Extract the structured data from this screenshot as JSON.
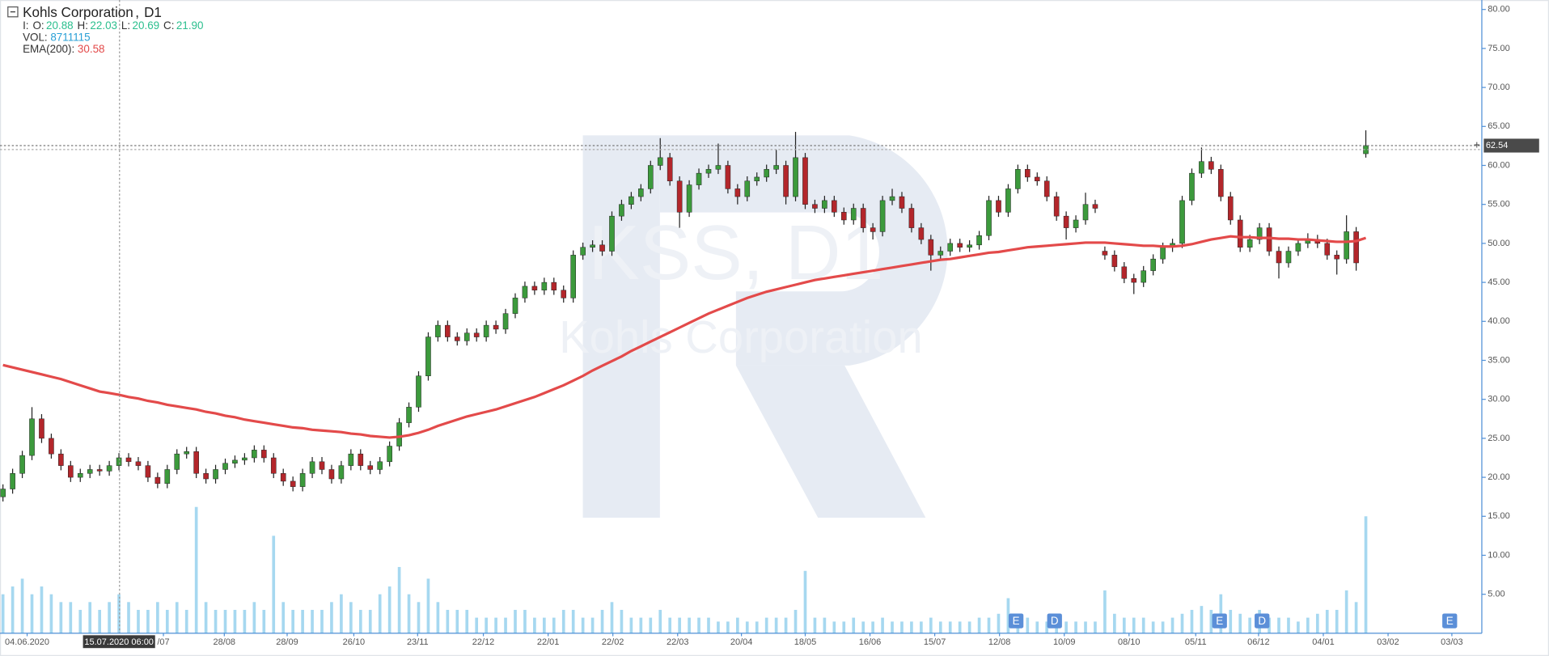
{
  "chart_data": {
    "type": "candlestick",
    "title": "Kohls Corporation",
    "timeframe": "D1",
    "watermark": {
      "symbol": "KSS, D1",
      "name": "Kohls Corporation"
    },
    "legend": {
      "prefix": "I:",
      "items": [
        {
          "label": "O:",
          "value": "20.88"
        },
        {
          "label": "H:",
          "value": "22.03"
        },
        {
          "label": "L:",
          "value": "20.69"
        },
        {
          "label": "C:",
          "value": "21.90"
        }
      ],
      "vol_label": "VOL:",
      "vol_value": 8711115,
      "ema_label": "EMA(200):",
      "ema_value": 30.58
    },
    "up_color": "#3c9a3c",
    "down_color": "#b3262b",
    "volume_color": "#a6d8f0",
    "ema_color": "#e34a4a",
    "ylim": [
      0,
      81
    ],
    "yticks": [
      {
        "value": 5,
        "label": "5.00"
      },
      {
        "value": 10,
        "label": "10.00"
      },
      {
        "value": 15,
        "label": "15.00"
      },
      {
        "value": 20,
        "label": "20.00"
      },
      {
        "value": 25,
        "label": "25.00"
      },
      {
        "value": 30,
        "label": "30.00"
      },
      {
        "value": 35,
        "label": "35.00"
      },
      {
        "value": 40,
        "label": "40.00"
      },
      {
        "value": 45,
        "label": "45.00"
      },
      {
        "value": 50,
        "label": "50.00"
      },
      {
        "value": 55,
        "label": "55.00"
      },
      {
        "value": 60,
        "label": "60.00"
      },
      {
        "value": 65,
        "label": "65.00"
      },
      {
        "value": 70,
        "label": "70.00"
      },
      {
        "value": 75,
        "label": "75.00"
      },
      {
        "value": 80,
        "label": "80.00"
      }
    ],
    "xlim": [
      0,
      153
    ],
    "xticks": [
      {
        "value": 2.5,
        "label": "04.06.2020"
      },
      {
        "value": 16.6,
        "label": "/07"
      },
      {
        "value": 22.9,
        "label": "28/08"
      },
      {
        "value": 29.4,
        "label": "28/09"
      },
      {
        "value": 36.3,
        "label": "26/10"
      },
      {
        "value": 42.9,
        "label": "23/11"
      },
      {
        "value": 49.7,
        "label": "22/12"
      },
      {
        "value": 56.4,
        "label": "22/01"
      },
      {
        "value": 63.1,
        "label": "22/02"
      },
      {
        "value": 69.8,
        "label": "22/03"
      },
      {
        "value": 76.4,
        "label": "20/04"
      },
      {
        "value": 83.0,
        "label": "18/05"
      },
      {
        "value": 89.7,
        "label": "16/06"
      },
      {
        "value": 96.4,
        "label": "15/07"
      },
      {
        "value": 103.1,
        "label": "12/08"
      },
      {
        "value": 109.8,
        "label": "10/09"
      },
      {
        "value": 116.5,
        "label": "08/10"
      },
      {
        "value": 123.4,
        "label": "05/11"
      },
      {
        "value": 129.9,
        "label": "06/12"
      },
      {
        "value": 136.6,
        "label": "04/01"
      },
      {
        "value": 143.3,
        "label": "03/02"
      },
      {
        "value": 149.9,
        "label": "03/03"
      }
    ],
    "last_price": 62.54,
    "crosshair_label": "15.07.2020 06:00",
    "events": [
      "E",
      "D",
      "E",
      "D",
      "E"
    ],
    "candles": [
      [
        17.5,
        19.1,
        16.9,
        18.5
      ],
      [
        18.5,
        21.1,
        17.9,
        20.5
      ],
      [
        20.5,
        23.4,
        19.9,
        22.8
      ],
      [
        22.8,
        29,
        22.2,
        27.5
      ],
      [
        27.5,
        28.1,
        24.4,
        25
      ],
      [
        25,
        25.6,
        22.4,
        23
      ],
      [
        23,
        23.6,
        20.9,
        21.5
      ],
      [
        21.5,
        22.1,
        19.4,
        20
      ],
      [
        20,
        21.1,
        19.4,
        20.5
      ],
      [
        20.5,
        21.6,
        19.9,
        21
      ],
      [
        21,
        21.6,
        20.2,
        20.8
      ],
      [
        20.8,
        22.1,
        20.2,
        21.5
      ],
      [
        21.5,
        23.1,
        20.9,
        22.5
      ],
      [
        22.5,
        23.1,
        21.4,
        22
      ],
      [
        22,
        22.6,
        20.9,
        21.5
      ],
      [
        21.5,
        22.1,
        19.4,
        20
      ],
      [
        20,
        20.6,
        18.6,
        19.2
      ],
      [
        19.2,
        21.6,
        18.6,
        21
      ],
      [
        21,
        23.6,
        20.4,
        23
      ],
      [
        23,
        23.9,
        22.4,
        23.3
      ],
      [
        23.3,
        23.9,
        19.9,
        20.5
      ],
      [
        20.5,
        21.1,
        19.2,
        19.8
      ],
      [
        19.8,
        21.6,
        19.2,
        21
      ],
      [
        21,
        22.4,
        20.4,
        21.8
      ],
      [
        21.8,
        22.8,
        21.2,
        22.2
      ],
      [
        22.2,
        23.1,
        21.6,
        22.5
      ],
      [
        22.5,
        24.1,
        21.9,
        23.5
      ],
      [
        23.5,
        24.1,
        21.9,
        22.5
      ],
      [
        22.5,
        23.1,
        19.9,
        20.5
      ],
      [
        20.5,
        21.1,
        18.9,
        19.5
      ],
      [
        19.5,
        20.1,
        18.2,
        18.8
      ],
      [
        18.8,
        21.1,
        18.2,
        20.5
      ],
      [
        20.5,
        22.6,
        19.9,
        22
      ],
      [
        22,
        22.6,
        20.4,
        21
      ],
      [
        21,
        21.6,
        19.2,
        19.8
      ],
      [
        19.8,
        22.1,
        19.2,
        21.5
      ],
      [
        21.5,
        23.6,
        20.9,
        23
      ],
      [
        23,
        23.6,
        20.9,
        21.5
      ],
      [
        21.5,
        22.1,
        20.4,
        21
      ],
      [
        21,
        22.6,
        20.4,
        22
      ],
      [
        22,
        24.6,
        21.4,
        24
      ],
      [
        24,
        27.6,
        23.4,
        27
      ],
      [
        27,
        29.6,
        26.4,
        29
      ],
      [
        29,
        33.6,
        28.4,
        33
      ],
      [
        33,
        38.6,
        32.4,
        38
      ],
      [
        38,
        40.1,
        37.4,
        39.5
      ],
      [
        39.5,
        40.1,
        37.4,
        38
      ],
      [
        38,
        38.6,
        36.9,
        37.5
      ],
      [
        37.5,
        39.1,
        36.9,
        38.5
      ],
      [
        38.5,
        39.1,
        37.4,
        38
      ],
      [
        38,
        40.1,
        37.4,
        39.5
      ],
      [
        39.5,
        40.1,
        38.4,
        39
      ],
      [
        39,
        41.6,
        38.4,
        41
      ],
      [
        41,
        43.6,
        40.4,
        43
      ],
      [
        43,
        45.1,
        42.4,
        44.5
      ],
      [
        44.5,
        45.1,
        43.4,
        44
      ],
      [
        44,
        45.6,
        43.4,
        45
      ],
      [
        45,
        45.6,
        43.4,
        44
      ],
      [
        44,
        44.6,
        42.4,
        43
      ],
      [
        43,
        49.1,
        42.4,
        48.5
      ],
      [
        48.5,
        50.1,
        47.9,
        49.5
      ],
      [
        49.5,
        50.4,
        48.9,
        49.8
      ],
      [
        49.8,
        50.4,
        48.4,
        49
      ],
      [
        49,
        54.1,
        48.4,
        53.5
      ],
      [
        53.5,
        55.6,
        52.9,
        55
      ],
      [
        55,
        56.6,
        54.4,
        56
      ],
      [
        56,
        57.6,
        55.4,
        57
      ],
      [
        57,
        60.6,
        56.4,
        60
      ],
      [
        60,
        63.5,
        59.4,
        61
      ],
      [
        61,
        61.6,
        57.4,
        58
      ],
      [
        58,
        58.6,
        52,
        54
      ],
      [
        54,
        58.1,
        53.4,
        57.5
      ],
      [
        57.5,
        59.6,
        56.9,
        59
      ],
      [
        59,
        60.1,
        58.4,
        59.5
      ],
      [
        59.5,
        62.8,
        58.9,
        60
      ],
      [
        60,
        60.6,
        56.4,
        57
      ],
      [
        57,
        57.6,
        55,
        56
      ],
      [
        56,
        58.6,
        55.4,
        58
      ],
      [
        58,
        59.1,
        57.4,
        58.5
      ],
      [
        58.5,
        60.1,
        57.9,
        59.5
      ],
      [
        59.5,
        62,
        58.9,
        60
      ],
      [
        60,
        60.6,
        55,
        56
      ],
      [
        56,
        64.3,
        55.4,
        61
      ],
      [
        61,
        61.6,
        54.4,
        55
      ],
      [
        55,
        55.6,
        53.9,
        54.5
      ],
      [
        54.5,
        56.1,
        53.9,
        55.5
      ],
      [
        55.5,
        56.1,
        53.4,
        54
      ],
      [
        54,
        54.6,
        52.4,
        53
      ],
      [
        53,
        55.1,
        52.4,
        54.5
      ],
      [
        54.5,
        55.1,
        51.4,
        52
      ],
      [
        52,
        52.6,
        50.5,
        51.5
      ],
      [
        51.5,
        56.1,
        50.9,
        55.5
      ],
      [
        55.5,
        57,
        54.9,
        56
      ],
      [
        56,
        56.6,
        53.9,
        54.5
      ],
      [
        54.5,
        55.1,
        51.4,
        52
      ],
      [
        52,
        52.6,
        49.9,
        50.5
      ],
      [
        50.5,
        51.1,
        46.5,
        48.5
      ],
      [
        48.5,
        49.6,
        47.9,
        49
      ],
      [
        49,
        50.6,
        48.4,
        50
      ],
      [
        50,
        50.6,
        48.9,
        49.5
      ],
      [
        49.5,
        50.4,
        48.9,
        49.8
      ],
      [
        49.8,
        51.6,
        49.2,
        51
      ],
      [
        51,
        56.1,
        50.4,
        55.5
      ],
      [
        55.5,
        56.1,
        53.4,
        54
      ],
      [
        54,
        57.6,
        53.4,
        57
      ],
      [
        57,
        60.1,
        56.4,
        59.5
      ],
      [
        59.5,
        60.1,
        57.9,
        58.5
      ],
      [
        58.5,
        59.1,
        57.4,
        58
      ],
      [
        58,
        58.6,
        55.4,
        56
      ],
      [
        56,
        56.6,
        52.9,
        53.5
      ],
      [
        53.5,
        54.1,
        50.5,
        52
      ],
      [
        52,
        53.6,
        51.4,
        53
      ],
      [
        53,
        56.5,
        52.4,
        55
      ],
      [
        55,
        55.6,
        53.9,
        54.5
      ],
      [
        49,
        49.6,
        47.9,
        48.5
      ],
      [
        48.5,
        49.1,
        46.4,
        47
      ],
      [
        47,
        47.6,
        44.9,
        45.5
      ],
      [
        45.5,
        46.1,
        43.5,
        45
      ],
      [
        45,
        47.1,
        44.4,
        46.5
      ],
      [
        46.5,
        48.6,
        45.9,
        48
      ],
      [
        48,
        50.1,
        47.4,
        49.5
      ],
      [
        49.5,
        50.6,
        48.9,
        50
      ],
      [
        50,
        56.1,
        49.4,
        55.5
      ],
      [
        55.5,
        59.6,
        54.9,
        59
      ],
      [
        59,
        62.3,
        58.4,
        60.5
      ],
      [
        60.5,
        61.1,
        58.9,
        59.5
      ],
      [
        59.5,
        60.1,
        55.4,
        56
      ],
      [
        56,
        56.6,
        52.4,
        53
      ],
      [
        53,
        53.6,
        48.9,
        49.5
      ],
      [
        49.5,
        51.1,
        48.9,
        50.5
      ],
      [
        50.5,
        52.6,
        49.9,
        52
      ],
      [
        52,
        52.6,
        48.4,
        49
      ],
      [
        49,
        49.6,
        45.5,
        47.5
      ],
      [
        47.5,
        49.6,
        46.9,
        49
      ],
      [
        49,
        50.6,
        48.4,
        50
      ],
      [
        50,
        51.3,
        49.4,
        50.5
      ],
      [
        50.5,
        51.1,
        49.4,
        50
      ],
      [
        50,
        50.6,
        47.9,
        48.5
      ],
      [
        48.5,
        49.1,
        46,
        48
      ],
      [
        48,
        53.6,
        47.4,
        51.5
      ],
      [
        51.5,
        52.1,
        46.5,
        47.5
      ],
      [
        61.5,
        64.5,
        61,
        62.54
      ]
    ],
    "volume": [
      5,
      6,
      7,
      5,
      6,
      5,
      4,
      4,
      3,
      4,
      3,
      4,
      5,
      4,
      3,
      3,
      4,
      3,
      4,
      3,
      16.2,
      4,
      3,
      3,
      3,
      3,
      4,
      3,
      12.5,
      4,
      3,
      3,
      3,
      3,
      4,
      5,
      4,
      3,
      3,
      5,
      6,
      8.5,
      5,
      4,
      7,
      4,
      3,
      3,
      3,
      2,
      2,
      2,
      2,
      3,
      3,
      2,
      2,
      2,
      3,
      3,
      2,
      2,
      3,
      4,
      3,
      2,
      2,
      2,
      3,
      2,
      2,
      2,
      2,
      2,
      1.5,
      1.5,
      2,
      1.5,
      1.5,
      2,
      2,
      2,
      3,
      8,
      2,
      2,
      1.5,
      1.5,
      2,
      1.5,
      1.5,
      2,
      1.5,
      1.5,
      1.5,
      1.5,
      2,
      1.5,
      1.5,
      1.5,
      1.5,
      2,
      2,
      2.5,
      4.5,
      2,
      2,
      1.5,
      1.5,
      1.5,
      1.5,
      1.5,
      1.5,
      1.5,
      5.5,
      2.5,
      2,
      2,
      2,
      1.5,
      1.5,
      2,
      2.5,
      3,
      3.5,
      3,
      5,
      3,
      2.5,
      2,
      3,
      2,
      2,
      2,
      1.5,
      2,
      2.5,
      3,
      3,
      5.5,
      4,
      15
    ],
    "ema": [
      34.4,
      34.1,
      33.8,
      33.5,
      33.2,
      32.9,
      32.6,
      32.2,
      31.8,
      31.4,
      31.0,
      30.8,
      30.58,
      30.3,
      30.1,
      29.8,
      29.6,
      29.3,
      29.1,
      28.9,
      28.7,
      28.4,
      28.2,
      27.9,
      27.7,
      27.4,
      27.2,
      27.0,
      26.8,
      26.6,
      26.4,
      26.3,
      26.1,
      26.0,
      25.9,
      25.8,
      25.6,
      25.5,
      25.3,
      25.2,
      25.1,
      25.2,
      25.4,
      25.7,
      26.1,
      26.6,
      27.0,
      27.4,
      27.8,
      28.1,
      28.4,
      28.7,
      29.1,
      29.5,
      29.9,
      30.3,
      30.8,
      31.3,
      31.8,
      32.4,
      33.0,
      33.7,
      34.3,
      34.9,
      35.5,
      36.2,
      36.8,
      37.4,
      38.0,
      38.6,
      39.2,
      39.8,
      40.4,
      41.0,
      41.5,
      42.0,
      42.5,
      43.0,
      43.4,
      43.8,
      44.1,
      44.4,
      44.7,
      45.0,
      45.3,
      45.5,
      45.7,
      45.9,
      46.1,
      46.3,
      46.5,
      46.7,
      46.9,
      47.1,
      47.3,
      47.5,
      47.7,
      47.9,
      48.0,
      48.2,
      48.4,
      48.6,
      48.8,
      48.9,
      49.1,
      49.3,
      49.5,
      49.6,
      49.7,
      49.8,
      49.9,
      50.0,
      50.1,
      50.1,
      50.1,
      50.0,
      49.9,
      49.8,
      49.7,
      49.7,
      49.6,
      49.6,
      49.7,
      49.9,
      50.2,
      50.5,
      50.7,
      50.9,
      50.8,
      50.8,
      50.7,
      50.7,
      50.6,
      50.6,
      50.5,
      50.5,
      50.4,
      50.3,
      50.2,
      50.2,
      50.3,
      50.7
    ]
  }
}
